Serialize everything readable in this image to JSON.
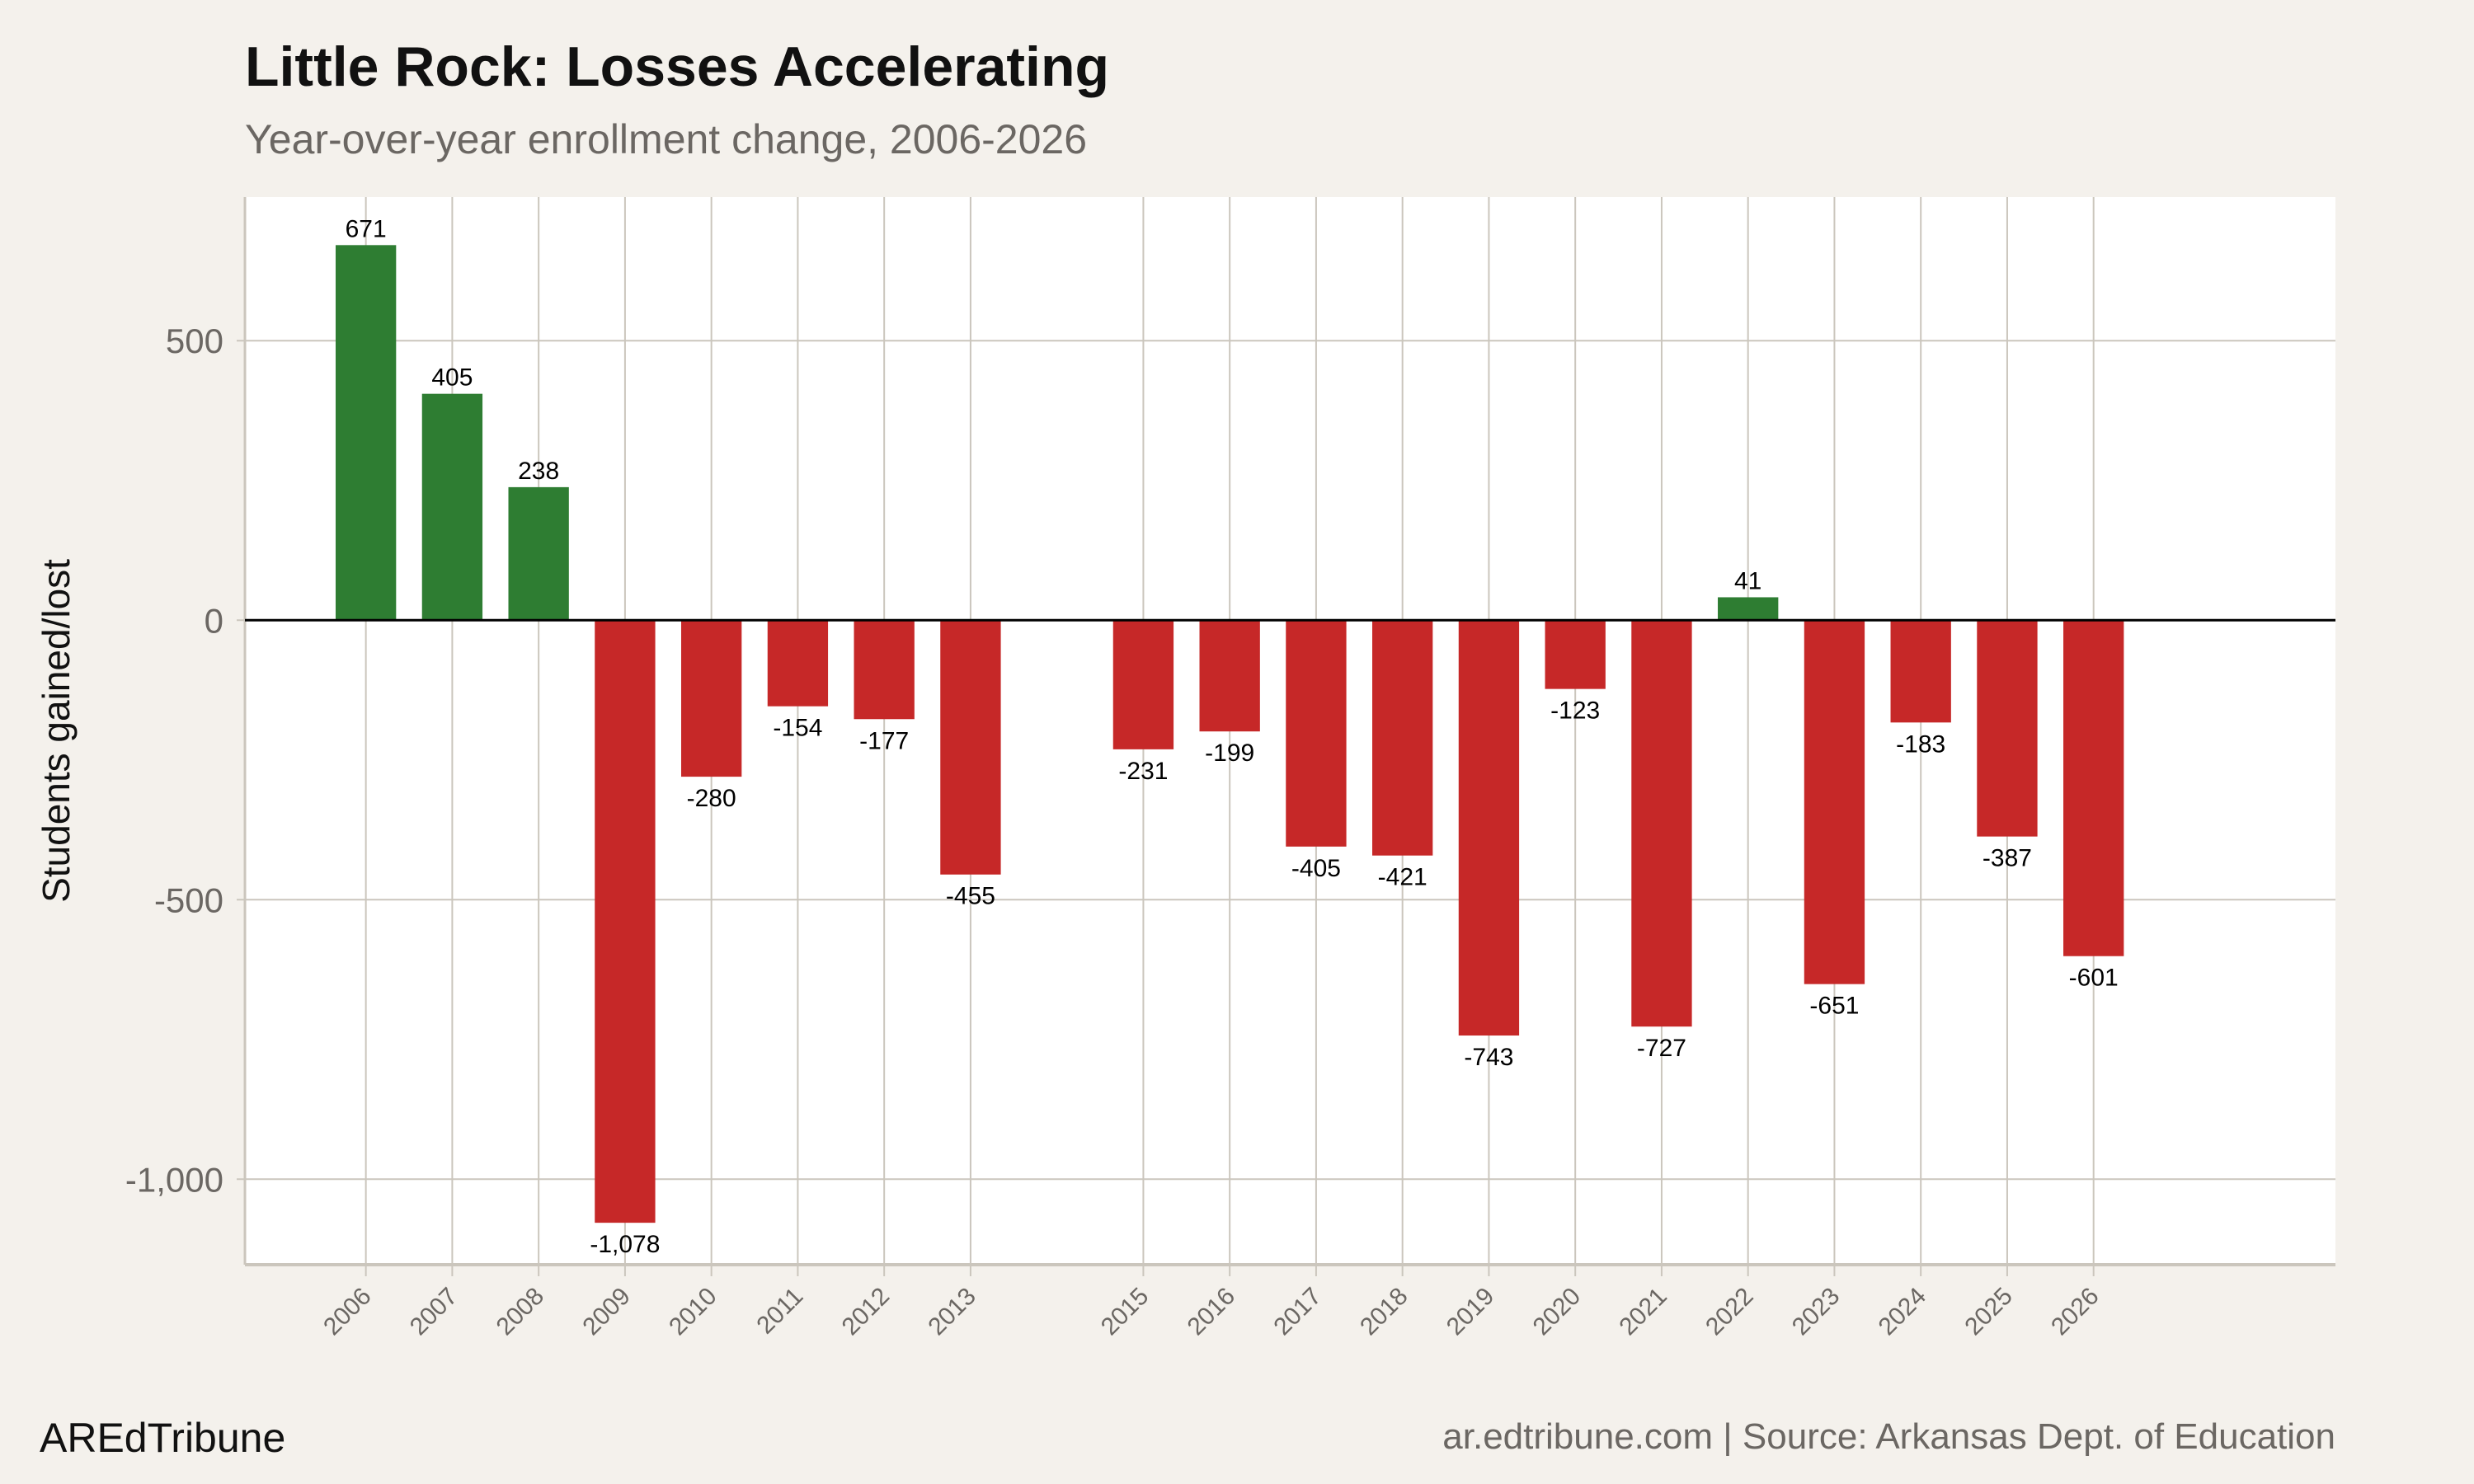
{
  "header": {
    "title": "Little Rock: Losses Accelerating",
    "subtitle": "Year-over-year enrollment change, 2006-2026"
  },
  "footer": {
    "brand": "AREdTribune",
    "source": "ar.edtribune.com | Source: Arkansas Dept. of Education"
  },
  "chart_data": {
    "type": "bar",
    "title": "Little Rock: Losses Accelerating",
    "subtitle": "Year-over-year enrollment change, 2006-2026",
    "xlabel": "",
    "ylabel": "Students gained/lost",
    "categories": [
      "2006",
      "2007",
      "2008",
      "2009",
      "2010",
      "2011",
      "2012",
      "2013",
      "2015",
      "2016",
      "2017",
      "2018",
      "2019",
      "2020",
      "2021",
      "2022",
      "2023",
      "2024",
      "2025",
      "2026"
    ],
    "values": [
      671,
      405,
      238,
      -1078,
      -280,
      -154,
      -177,
      -455,
      -231,
      -199,
      -405,
      -421,
      -743,
      -123,
      -727,
      41,
      -651,
      -183,
      -387,
      -601
    ],
    "data_labels": [
      "671",
      "405",
      "238",
      "-1,078",
      "-280",
      "-154",
      "-177",
      "-455",
      "-231",
      "-199",
      "-405",
      "-421",
      "-743",
      "-123",
      "-727",
      "41",
      "-651",
      "-183",
      "-387",
      "-601"
    ],
    "yticks": [
      500,
      0,
      -500,
      -1000
    ],
    "ytick_labels": [
      "500",
      "0",
      "-500",
      "-1,000"
    ],
    "xlim": [
      2004.6,
      2028.8
    ],
    "ylim": [
      -1153,
      757
    ],
    "grid": true,
    "legend": "none",
    "colors": {
      "positive": "#2e7d32",
      "negative": "#c62828",
      "zero_line": "#000000",
      "grid": "#cbc6bd",
      "panel": "#ffffff",
      "background": "#f4f1ec"
    }
  }
}
